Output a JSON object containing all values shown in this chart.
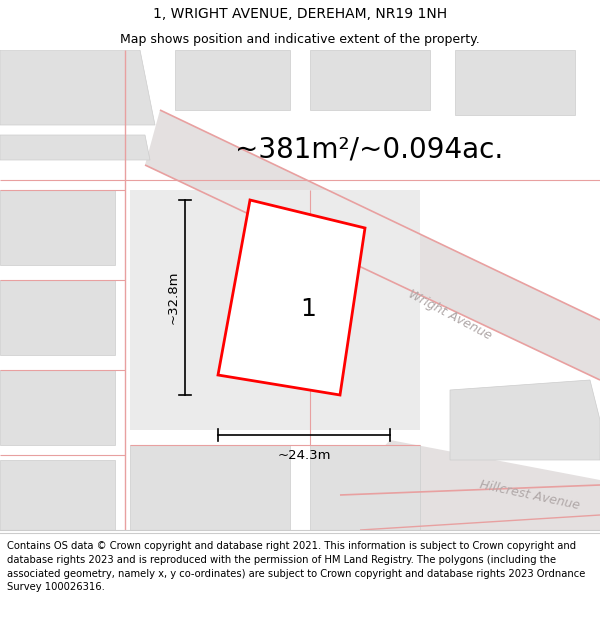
{
  "title": "1, WRIGHT AVENUE, DEREHAM, NR19 1NH",
  "subtitle": "Map shows position and indicative extent of the property.",
  "area_text": "~381m²/~0.094ac.",
  "width_label": "~24.3m",
  "height_label": "~32.8m",
  "plot_number": "1",
  "road_label_1": "Wright Avenue",
  "road_label_2": "Hillcrest Avenue",
  "footer_text": "Contains OS data © Crown copyright and database right 2021. This information is subject to Crown copyright and database rights 2023 and is reproduced with the permission of HM Land Registry. The polygons (including the associated geometry, namely x, y co-ordinates) are subject to Crown copyright and database rights 2023 Ordnance Survey 100026316.",
  "bg_color": "#f0f0f0",
  "plot_fill": "#ffffff",
  "road_line_color": "#e8a0a0",
  "road_fill_color": "#e8e0e0",
  "road_label_color": "#b0a8a8",
  "building_color": "#e0e0e0",
  "building_edge": "#cccccc",
  "title_fontsize": 10,
  "subtitle_fontsize": 9,
  "area_fontsize": 20,
  "footer_fontsize": 7.2,
  "figsize": [
    6.0,
    6.25
  ]
}
